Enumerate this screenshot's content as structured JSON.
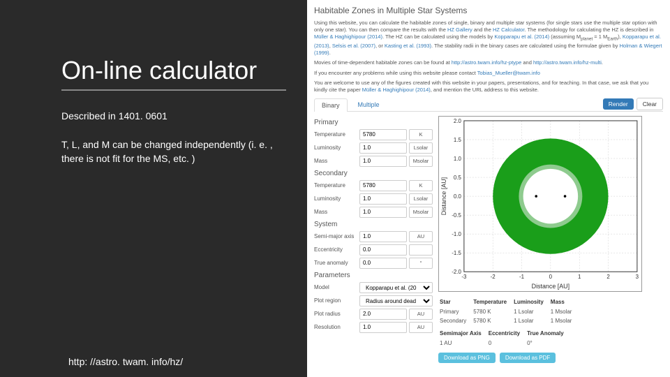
{
  "slide": {
    "title": "On-line calculator",
    "desc": "Described in 1401. 0601",
    "body": "T, L, and M can be changed independently (i. e. , there is not fit for the MS, etc. )",
    "url": "http: //astro. twam. info/hz/"
  },
  "app": {
    "header_title": "Habitable Zones in Multiple Star Systems",
    "intro1_a": "Using this website, you can calculate the habitable zones of single, binary and multiple star systems (for single stars use the multiple star option with only one star). You can then compare the results with the ",
    "intro1_link1": "HZ Gallery",
    "intro1_b": " and the ",
    "intro1_link2": "HZ Calculator",
    "intro1_c": ". The methodology for calculating the HZ is described in ",
    "intro1_link3": "Müller & Haghighipour (2014)",
    "intro1_d": ". The HZ can be calculated using the models by ",
    "intro1_link4": "Kopparapu et al. (2014)",
    "intro1_e": " (assuming M",
    "intro1_f": " = 1 M",
    "intro1_g": "), ",
    "intro1_link5": "Kopparapu et al. (2013)",
    "intro1_h": ", ",
    "intro1_link6": "Selsis et al. (2007)",
    "intro1_i": ", or ",
    "intro1_link7": "Kasting et al. (1993)",
    "intro1_j": ". The stability radii in the binary cases are calculated using the formulae given by ",
    "intro1_link8": "Holman & Wiegert (1999)",
    "intro1_k": ".",
    "intro2_a": "Movies of time-dependent habitable zones can be found at ",
    "intro2_link1": "http://astro.twam.info/hz-ptype",
    "intro2_b": " and ",
    "intro2_link2": "http://astro.twam.info/hz-multi",
    "intro2_c": ".",
    "intro3_a": "If you encounter any problems while using this website please contact ",
    "intro3_link1": "Tobias_Mueller@twam.info",
    "intro4_a": "You are welcome to use any of the figures created with this website in your papers, presentations, and for teaching. In that case, we ask that you kindly cite the paper ",
    "intro4_link1": "Müller & Haghighipour (2014)",
    "intro4_b": ", and mention the URL address to this website.",
    "tabs": {
      "binary": "Binary",
      "multiple": "Multiple"
    },
    "buttons": {
      "render": "Render",
      "clear": "Clear",
      "dl_png": "Download as PNG",
      "dl_pdf": "Download as PDF"
    },
    "sections": {
      "primary": "Primary",
      "secondary": "Secondary",
      "system": "System",
      "parameters": "Parameters"
    },
    "labels": {
      "temperature": "Temperature",
      "luminosity": "Luminosity",
      "mass": "Mass",
      "semimajor": "Semi-major axis",
      "eccentricity": "Eccentricity",
      "trueanomaly": "True anomaly",
      "model": "Model",
      "plotregion": "Plot region",
      "plotradius": "Plot radius",
      "resolution": "Resolution"
    },
    "values": {
      "p_temp": "5780",
      "p_lum": "1.0",
      "p_mass": "1.0",
      "s_temp": "5780",
      "s_lum": "1.0",
      "s_mass": "1.0",
      "semimajor": "1.0",
      "ecc": "0.0",
      "ta": "0.0",
      "model_sel": "Kopparapu et al. (20",
      "plotregion_sel": "Radius around dead",
      "plotradius": "2.0",
      "resolution": "1.0"
    },
    "units": {
      "K": "K",
      "Lsolar": "Lsolar",
      "Msolar": "Msolar",
      "AU": "AU",
      "deg": "°"
    },
    "results": {
      "head": {
        "star": "Star",
        "temp": "Temperature",
        "lum": "Luminosity",
        "mass": "Mass"
      },
      "rows": [
        {
          "star": "Primary",
          "temp": "5780 K",
          "lum": "1 Lsolar",
          "mass": "1 Msolar"
        },
        {
          "star": "Secondary",
          "temp": "5780 K",
          "lum": "1 Lsolar",
          "mass": "1 Msolar"
        }
      ],
      "head2": {
        "sma": "Semimajor Axis",
        "ecc": "Eccentricity",
        "ta": "True Anomaly"
      },
      "row2": {
        "sma": "1 AU",
        "ecc": "0",
        "ta": "0°"
      }
    },
    "chart": {
      "type": "habitable-zone-ring",
      "xlim": [
        -3,
        3
      ],
      "ylim": [
        -2,
        2
      ],
      "outer_r_au": 2.0,
      "inner_r_au": 0.95,
      "xlabel": "Distance [AU]",
      "ylabel": "Distance [AU]",
      "xticks": [
        -3,
        -2,
        -1,
        0,
        1,
        2,
        3
      ],
      "yticks": [
        -2,
        -1.5,
        -1,
        -0.5,
        0,
        0.5,
        1,
        1.5,
        2
      ],
      "ring_color": "#1a9e1a",
      "inner_ring_color": "#8ecb8e",
      "background": "#ffffff",
      "grid_color": "#cccccc",
      "stars": [
        {
          "x_au": -0.5,
          "y_au": 0
        },
        {
          "x_au": 0.5,
          "y_au": 0
        }
      ]
    }
  }
}
